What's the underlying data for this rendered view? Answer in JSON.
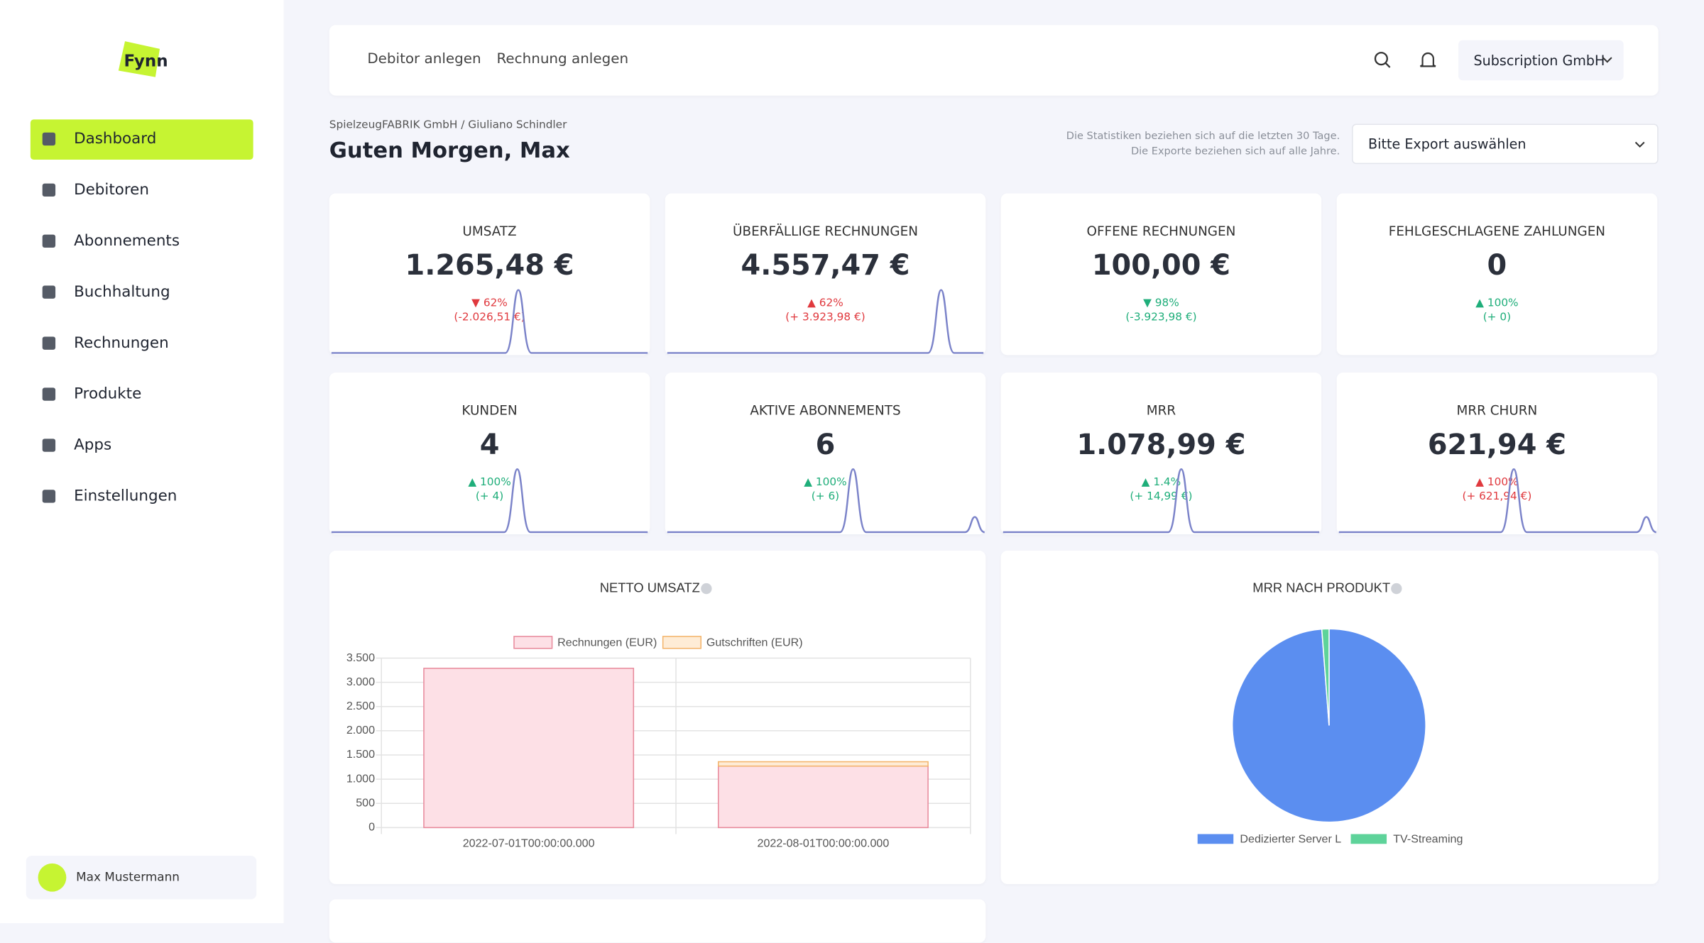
{
  "logo": "Fynn",
  "nav": [
    "Dashboard",
    "Debitoren",
    "Abonnements",
    "Buchhaltung",
    "Rechnungen",
    "Produkte",
    "Apps",
    "Einstellungen"
  ],
  "user": "Max Mustermann",
  "topbar": {
    "actions": [
      "Debitor anlegen",
      "Rechnung anlegen"
    ],
    "company": "Subscription GmbH"
  },
  "breadcrumb": "SpielzeugFABRIK GmbH / Giuliano Schindler",
  "greeting": "Guten Morgen, Max",
  "note": [
    "Die Statistiken beziehen sich auf die letzten 30 Tage.",
    "Die Exporte beziehen sich auf alle Jahre."
  ],
  "export_select": "Bitte Export auswählen",
  "cards": [
    {
      "label": "UMSATZ",
      "value": "1.265,48 €",
      "trend": "down",
      "percent": "62%",
      "delta": "(-2.026,51 €)"
    },
    {
      "label": "ÜBERFÄLLIGE RECHNUNGEN",
      "value": "4.557,47 €",
      "trend": "up-bad",
      "percent": "62%",
      "delta": "(+ 3.923,98 €)"
    },
    {
      "label": "OFFENE RECHNUNGEN",
      "value": "100,00 €",
      "trend": "down-good",
      "percent": "98%",
      "delta": "(-3.923,98 €)"
    },
    {
      "label": "FEHLGESCHLAGENE ZAHLUNGEN",
      "value": "0",
      "trend": "up",
      "percent": "100%",
      "delta": "(+ 0)"
    },
    {
      "label": "KUNDEN",
      "value": "4",
      "trend": "up",
      "percent": "100%",
      "delta": "(+ 4)"
    },
    {
      "label": "AKTIVE ABONNEMENTS",
      "value": "6",
      "trend": "up",
      "percent": "100%",
      "delta": "(+ 6)"
    },
    {
      "label": "MRR",
      "value": "1.078,99 €",
      "trend": "up",
      "percent": "1.4%",
      "delta": "(+ 14,99 €)"
    },
    {
      "label": "MRR CHURN",
      "value": "621,94 €",
      "trend": "up-bad",
      "percent": "100%",
      "delta": "(+ 621,94 €)"
    }
  ],
  "chart_data": [
    {
      "type": "bar",
      "title": "NETTO UMSATZ",
      "stacked": true,
      "categories": [
        "2022-07-01T00:00:00.000",
        "2022-08-01T00:00:00.000"
      ],
      "series": [
        {
          "name": "Rechnungen (EUR)",
          "color": "#fde0e6",
          "border": "#e8899b",
          "values": [
            3290,
            1270
          ]
        },
        {
          "name": "Gutschriften (EUR)",
          "color": "#feecd6",
          "border": "#f3b36a",
          "values": [
            0,
            90
          ]
        }
      ],
      "ylim": [
        0,
        3500
      ],
      "yticks": [
        0,
        500,
        {
          "value": 1000,
          "label": "1.000"
        },
        {
          "value": 1500,
          "label": "1.500"
        },
        {
          "value": 2000,
          "label": "2.000"
        },
        {
          "value": 2500,
          "label": "2.500"
        },
        {
          "value": 3000,
          "label": "3.000"
        },
        {
          "value": 3500,
          "label": "3.500"
        }
      ],
      "grid": true
    },
    {
      "type": "pie",
      "title": "MRR NACH PRODUKT",
      "labels": [
        "Dedizierter Server L",
        "TV-Streaming"
      ],
      "values": [
        98.8,
        1.2
      ],
      "colors": [
        "#5b8ef0",
        "#5ed39a"
      ]
    }
  ]
}
